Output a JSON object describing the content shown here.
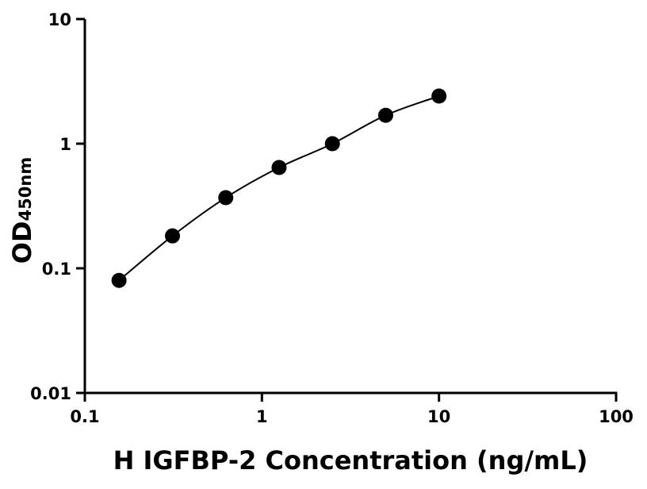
{
  "chart_data": {
    "type": "scatter",
    "title": "",
    "xlabel": "H IGFBP-2 Concentration (ng/mL)",
    "ylabel_main": "OD",
    "ylabel_sub": "450nm",
    "x_scale": "log",
    "y_scale": "log",
    "xlim": [
      0.1,
      100
    ],
    "ylim": [
      0.01,
      10
    ],
    "x_ticks": [
      0.1,
      1,
      10,
      100
    ],
    "x_tick_labels": [
      "0.1",
      "1",
      "10",
      "100"
    ],
    "y_ticks": [
      0.01,
      0.1,
      1,
      10
    ],
    "y_tick_labels": [
      "0.01",
      "0.1",
      "1",
      "10"
    ],
    "grid": false,
    "fit_curve": true,
    "marker_color": "#000000",
    "x": [
      0.156,
      0.3125,
      0.625,
      1.25,
      2.5,
      5,
      10
    ],
    "y": [
      0.08,
      0.182,
      0.369,
      0.644,
      1.0,
      1.69,
      2.41
    ]
  }
}
